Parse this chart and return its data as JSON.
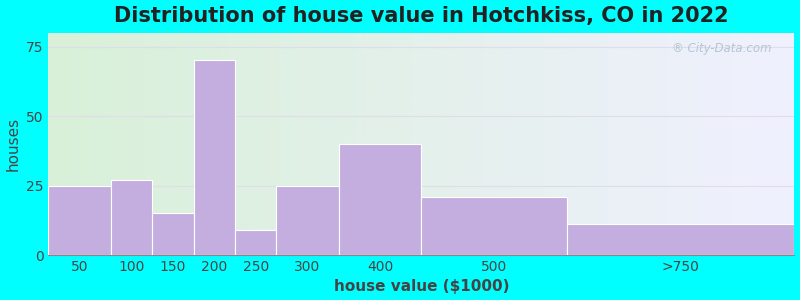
{
  "title": "Distribution of house value in Hotchkiss, CO in 2022",
  "xlabel": "house value ($1000)",
  "ylabel": "houses",
  "bin_edges": [
    0,
    75,
    125,
    175,
    225,
    275,
    350,
    450,
    625,
    900
  ],
  "tick_labels": [
    "50",
    "100",
    "150",
    "200",
    "250",
    "300",
    "400",
    "500",
    ">750"
  ],
  "values": [
    25,
    27,
    15,
    70,
    9,
    25,
    40,
    21,
    11
  ],
  "bar_color": "#c4aee0",
  "bar_edgecolor": "#ffffff",
  "ylim": [
    0,
    80
  ],
  "yticks": [
    0,
    25,
    50,
    75
  ],
  "bg_color": "#00ffff",
  "plot_bg_left": "#d8f0d8",
  "plot_bg_right": "#f0f0ff",
  "grid_color": "#e0dde8",
  "title_fontsize": 15,
  "axis_label_fontsize": 11,
  "tick_fontsize": 10,
  "watermark_text": "® City-Data.com",
  "watermark_color": "#a8c0cc"
}
